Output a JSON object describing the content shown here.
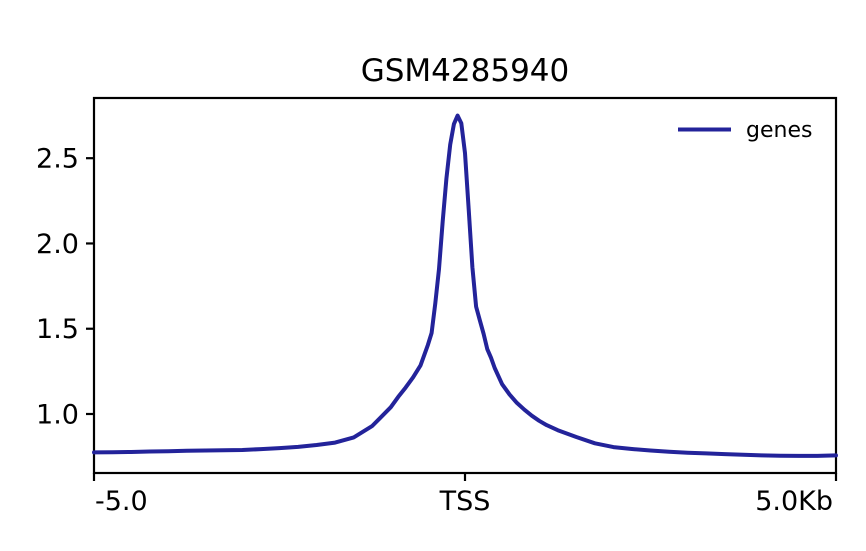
{
  "figure": {
    "background": "#ffffff",
    "title": "GSM4285940"
  },
  "legend": {
    "label": "genes",
    "frame": false,
    "position": "upper-right"
  },
  "chart_data": {
    "type": "line",
    "title": "GSM4285940",
    "xlabel": "",
    "ylabel": "",
    "x_unit": "kb relative to TSS",
    "xlim": [
      -5,
      5
    ],
    "ylim": [
      0.654,
      2.853
    ],
    "grid": false,
    "legend_position": "upper-right",
    "axis_color": "#000000",
    "xticks": [
      {
        "value": -5,
        "label": "-5.0",
        "align": "start"
      },
      {
        "value": 0,
        "label": "TSS",
        "align": "middle"
      },
      {
        "value": 5,
        "label": "5.0Kb",
        "align": "end"
      }
    ],
    "yticks": [
      {
        "value": 1.0,
        "label": "1.0"
      },
      {
        "value": 1.5,
        "label": "1.5"
      },
      {
        "value": 2.0,
        "label": "2.0"
      },
      {
        "value": 2.5,
        "label": "2.5"
      }
    ],
    "series": [
      {
        "name": "genes",
        "color": "#23239a",
        "line_width": 4,
        "x": [
          -5.0,
          -4.75,
          -4.5,
          -4.25,
          -4.0,
          -3.75,
          -3.5,
          -3.25,
          -3.0,
          -2.75,
          -2.5,
          -2.25,
          -2.0,
          -1.75,
          -1.5,
          -1.25,
          -1.0,
          -0.9,
          -0.8,
          -0.7,
          -0.6,
          -0.5,
          -0.45,
          -0.4,
          -0.35,
          -0.3,
          -0.25,
          -0.2,
          -0.15,
          -0.1,
          -0.05,
          0.0,
          0.05,
          0.1,
          0.15,
          0.2,
          0.25,
          0.3,
          0.35,
          0.4,
          0.5,
          0.6,
          0.7,
          0.8,
          0.9,
          1.0,
          1.1,
          1.25,
          1.5,
          1.75,
          2.0,
          2.25,
          2.5,
          2.75,
          3.0,
          3.25,
          3.5,
          3.75,
          4.0,
          4.25,
          4.5,
          4.75,
          5.0
        ],
        "y": [
          0.775,
          0.776,
          0.777,
          0.78,
          0.781,
          0.784,
          0.786,
          0.787,
          0.789,
          0.794,
          0.8,
          0.807,
          0.818,
          0.832,
          0.863,
          0.93,
          1.04,
          1.1,
          1.155,
          1.215,
          1.285,
          1.405,
          1.475,
          1.65,
          1.85,
          2.13,
          2.38,
          2.58,
          2.7,
          2.75,
          2.705,
          2.53,
          2.2,
          1.86,
          1.63,
          1.55,
          1.47,
          1.38,
          1.33,
          1.27,
          1.175,
          1.115,
          1.065,
          1.025,
          0.99,
          0.96,
          0.935,
          0.905,
          0.865,
          0.828,
          0.806,
          0.795,
          0.786,
          0.779,
          0.773,
          0.769,
          0.765,
          0.761,
          0.757,
          0.755,
          0.754,
          0.754,
          0.757
        ]
      }
    ]
  }
}
